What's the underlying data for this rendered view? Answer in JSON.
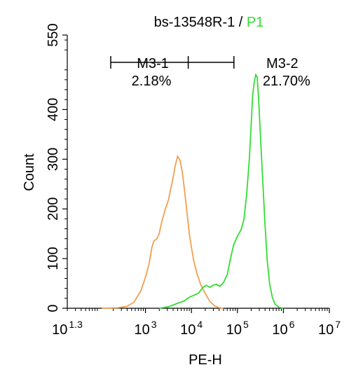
{
  "chart_data": {
    "type": "line",
    "title_main": "bs-13548R-1 / ",
    "title_gate": "P1",
    "xlabel": "PE-H",
    "ylabel": "Count",
    "x_scale": "log",
    "xlim_log10": [
      1.3,
      7
    ],
    "ylim": [
      0,
      550
    ],
    "x_ticks": [
      {
        "base": "10",
        "exp": "1.3",
        "log": 1.3
      },
      {
        "base": "10",
        "exp": "3",
        "log": 3
      },
      {
        "base": "10",
        "exp": "4",
        "log": 4
      },
      {
        "base": "10",
        "exp": "5",
        "log": 5
      },
      {
        "base": "10",
        "exp": "6",
        "log": 6
      },
      {
        "base": "10",
        "exp": "7",
        "log": 7
      }
    ],
    "y_ticks": [
      "0",
      "100",
      "200",
      "300",
      "400",
      "550"
    ],
    "y_tick_values": [
      0,
      100,
      200,
      300,
      400,
      550
    ],
    "colors": {
      "control": "#f0a050",
      "sample": "#33dd33",
      "axis": "#000000"
    },
    "gates": [
      {
        "name": "M3-1",
        "value": "2.18%",
        "from_log": 1.3,
        "to_log": 5.0,
        "tick_log": 3.9,
        "level": 495
      },
      {
        "name": "M3-2",
        "value": "21.70%",
        "label_log": 5.9
      }
    ],
    "series": [
      {
        "key": "control",
        "points": [
          [
            2.05,
            0
          ],
          [
            2.4,
            1
          ],
          [
            2.6,
            4
          ],
          [
            2.75,
            12
          ],
          [
            2.9,
            35
          ],
          [
            3.0,
            62
          ],
          [
            3.08,
            90
          ],
          [
            3.14,
            122
          ],
          [
            3.18,
            135
          ],
          [
            3.25,
            140
          ],
          [
            3.3,
            150
          ],
          [
            3.35,
            172
          ],
          [
            3.42,
            196
          ],
          [
            3.5,
            218
          ],
          [
            3.55,
            240
          ],
          [
            3.6,
            262
          ],
          [
            3.65,
            288
          ],
          [
            3.7,
            306
          ],
          [
            3.75,
            298
          ],
          [
            3.8,
            276
          ],
          [
            3.85,
            238
          ],
          [
            3.9,
            196
          ],
          [
            3.95,
            152
          ],
          [
            4.0,
            122
          ],
          [
            4.05,
            96
          ],
          [
            4.12,
            70
          ],
          [
            4.2,
            48
          ],
          [
            4.3,
            30
          ],
          [
            4.4,
            14
          ],
          [
            4.5,
            5
          ],
          [
            4.6,
            1
          ],
          [
            4.7,
            0
          ]
        ]
      },
      {
        "key": "sample",
        "points": [
          [
            3.3,
            0
          ],
          [
            3.5,
            3
          ],
          [
            3.7,
            10
          ],
          [
            3.85,
            15
          ],
          [
            3.95,
            22
          ],
          [
            4.05,
            26
          ],
          [
            4.15,
            30
          ],
          [
            4.25,
            42
          ],
          [
            4.32,
            46
          ],
          [
            4.4,
            42
          ],
          [
            4.48,
            47
          ],
          [
            4.55,
            48
          ],
          [
            4.62,
            44
          ],
          [
            4.7,
            52
          ],
          [
            4.78,
            68
          ],
          [
            4.85,
            100
          ],
          [
            4.92,
            128
          ],
          [
            5.0,
            145
          ],
          [
            5.08,
            158
          ],
          [
            5.14,
            178
          ],
          [
            5.2,
            228
          ],
          [
            5.26,
            300
          ],
          [
            5.3,
            372
          ],
          [
            5.33,
            425
          ],
          [
            5.36,
            452
          ],
          [
            5.4,
            470
          ],
          [
            5.43,
            465
          ],
          [
            5.46,
            422
          ],
          [
            5.5,
            348
          ],
          [
            5.55,
            258
          ],
          [
            5.6,
            170
          ],
          [
            5.65,
            95
          ],
          [
            5.7,
            50
          ],
          [
            5.76,
            22
          ],
          [
            5.82,
            8
          ],
          [
            5.9,
            2
          ],
          [
            6.0,
            0
          ]
        ]
      }
    ]
  }
}
